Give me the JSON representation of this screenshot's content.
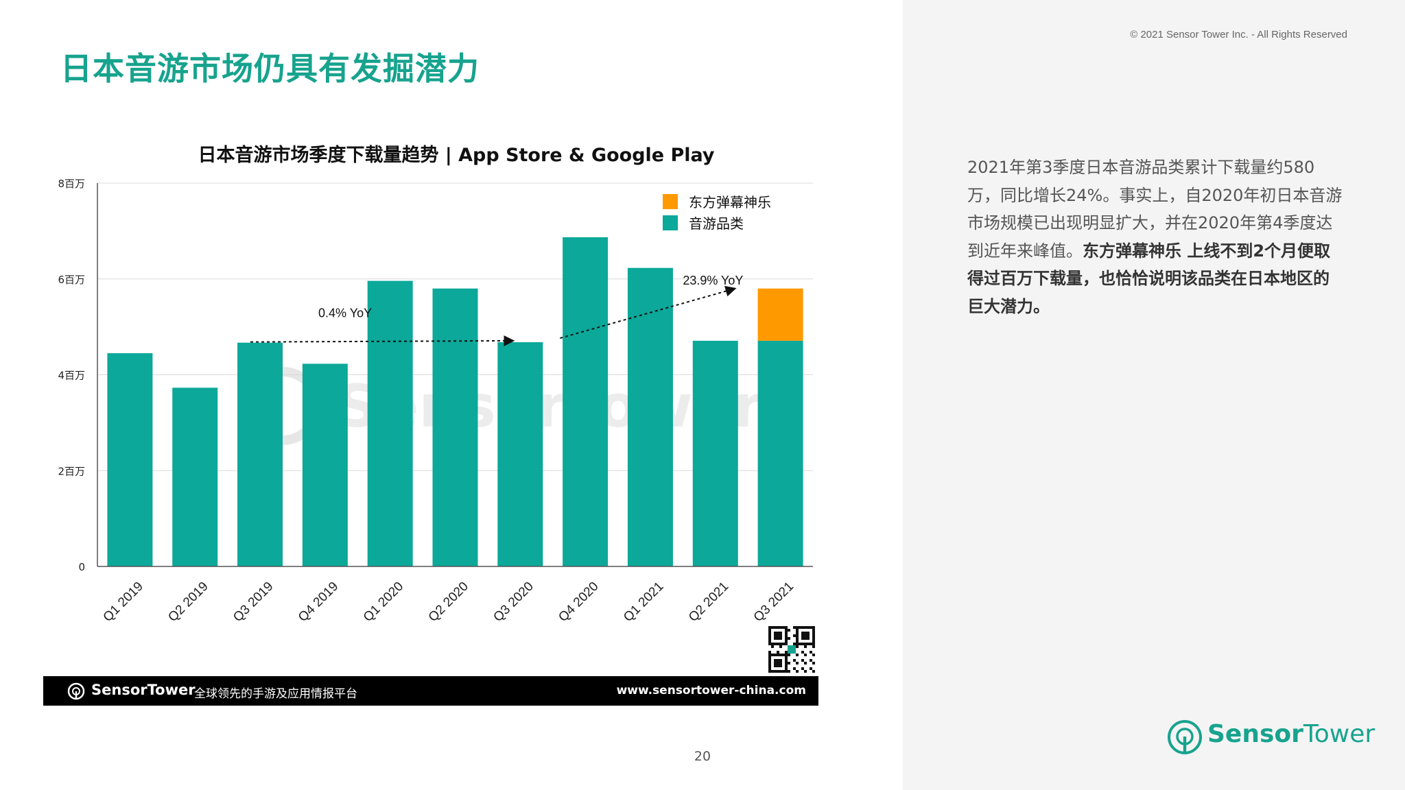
{
  "page": {
    "title": "日本音游市场仍具有发掘潜力",
    "copyright": "© 2021 Sensor Tower Inc. - All Rights Reserved",
    "page_number": "20"
  },
  "chart_data": {
    "type": "bar",
    "stacked": true,
    "title": "日本音游市场季度下载量趋势 | App Store & Google Play",
    "categories": [
      "Q1 2019",
      "Q2 2019",
      "Q3 2019",
      "Q4 2019",
      "Q1 2020",
      "Q2 2020",
      "Q3 2020",
      "Q4 2020",
      "Q1 2021",
      "Q2 2021",
      "Q3 2021"
    ],
    "series": [
      {
        "name": "音游品类",
        "color": "#0ca899",
        "values": [
          4.45,
          3.73,
          4.67,
          4.23,
          5.96,
          5.8,
          4.68,
          6.87,
          6.23,
          4.71,
          4.71
        ]
      },
      {
        "name": "东方弹幕神乐",
        "color": "#ff9900",
        "values": [
          0,
          0,
          0,
          0,
          0,
          0,
          0,
          0,
          0,
          0,
          1.09
        ]
      }
    ],
    "ylim": [
      0,
      8
    ],
    "yticks": [
      0,
      2,
      4,
      6,
      8
    ],
    "ytick_labels": [
      "0",
      "2百万",
      "4百万",
      "6百万",
      "8百万"
    ],
    "grid": true,
    "legend_position": "top-right",
    "annotations": [
      {
        "text": "0.4% YoY",
        "from": {
          "x": "Q3 2019",
          "y": 4.67
        },
        "to": {
          "x": "Q3 2020",
          "y": 4.71
        }
      },
      {
        "text": "23.9% YoY",
        "from": {
          "x": "Q3 2020",
          "y": 4.75
        },
        "to": {
          "x": "Q3 2021",
          "y": 5.8
        }
      }
    ],
    "watermark": "SensorTower"
  },
  "footer": {
    "brand": "SensorTower",
    "slogan": "全球领先的手游及应用情报平台",
    "url": "www.sensortower-china.com"
  },
  "sidebar": {
    "paragraph_regular": "2021年第3季度日本音游品类累计下载量约580万，同比增长24%。事实上，自2020年初日本音游市场规模已出现明显扩大，并在2020年第4季度达到近年来峰值。",
    "paragraph_bold": "东方弹幕神乐 上线不到2个月便取得过百万下载量，也恰恰说明该品类在日本地区的巨大潜力。"
  },
  "brand": {
    "name_bold": "Sensor",
    "name_light": "Tower",
    "accent_color": "#17a38e"
  }
}
